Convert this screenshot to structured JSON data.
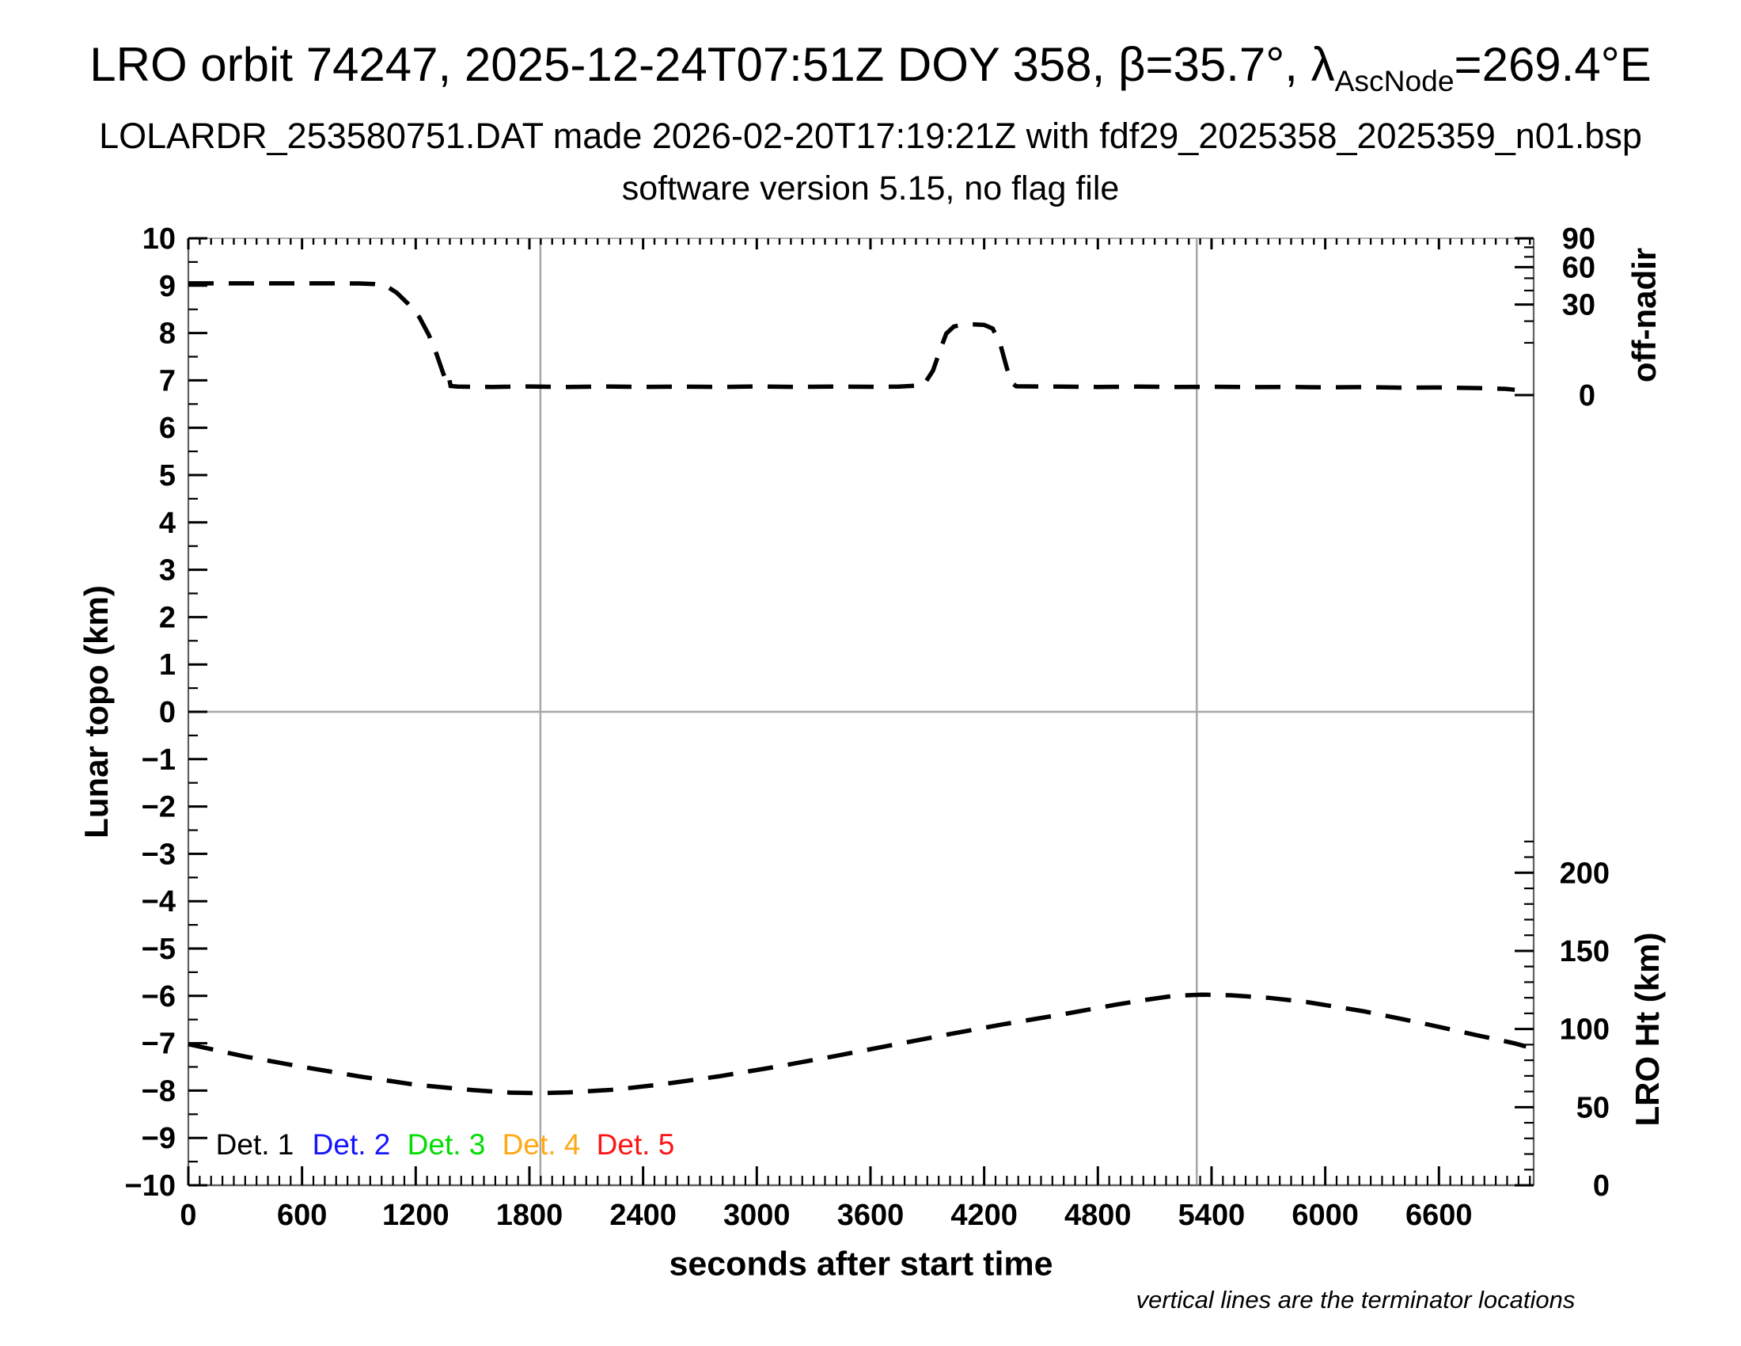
{
  "header": {
    "title_prefix": "LRO orbit 74247, 2025-12-24T07:51Z DOY 358, β=35.7°, λ",
    "title_lambda_sub": "AscNode",
    "title_suffix": "=269.4°E",
    "subtitle_file": "LOLARDR_253580751.DAT made 2026-02-20T17:19:21Z with fdf29_2025358_2025359_n01.bsp",
    "subtitle_version": "software version 5.15, no flag file"
  },
  "chart_data": {
    "type": "line",
    "title": "LRO orbit 74247, 2025-12-24T07:51Z DOY 358, β=35.7°, λAscNode=269.4°E",
    "x_axis": {
      "label": "seconds after start time",
      "range": [
        0,
        7100
      ],
      "major_ticks": [
        0,
        600,
        1200,
        1800,
        2400,
        3000,
        3600,
        4200,
        4800,
        5400,
        6000,
        6600
      ],
      "minor_step": 60
    },
    "left_y_axis": {
      "label": "Lunar topo (km)",
      "range": [
        -10,
        10
      ],
      "major_step": 1,
      "minor_step": 0.5
    },
    "right_top_axis": {
      "label": "off-nadir",
      "units": "degrees",
      "major_ticks": [
        90,
        60,
        30,
        0
      ],
      "minor_ticks": [
        80,
        70,
        50,
        40,
        20,
        10
      ],
      "map_a": 6.69,
      "map_b": 3.31,
      "mapping": "left-axis position = map_a + map_b*sqrt(deg/90)"
    },
    "right_bottom_axis": {
      "label": "LRO Ht (km)",
      "major_ticks": [
        200,
        150,
        100,
        50,
        0
      ],
      "minor_step": 10,
      "minor_max": 220,
      "km_per_topo_unit": 30.3,
      "mapping": "left-axis position = -10 + km/km_per_topo_unit"
    },
    "grid": {
      "zero_line_topo": 0,
      "terminator_lines_sec": [
        1858,
        5322
      ]
    },
    "note": "vertical lines are the terminator locations",
    "legend": [
      {
        "label": "Det. 1",
        "color": "#000000"
      },
      {
        "label": "Det. 2",
        "color": "#1414ff"
      },
      {
        "label": "Det. 3",
        "color": "#00dd00"
      },
      {
        "label": "Det. 4",
        "color": "#ffa914"
      },
      {
        "label": "Det. 5",
        "color": "#ff1414"
      }
    ],
    "series": [
      {
        "name": "off-nadir angle",
        "axis": "right_top",
        "units": "deg",
        "style": "dashed",
        "color": "#000000",
        "points": [
          [
            0,
            45.7
          ],
          [
            150,
            45.7
          ],
          [
            300,
            45.7
          ],
          [
            450,
            45.7
          ],
          [
            600,
            45.7
          ],
          [
            750,
            45.7
          ],
          [
            900,
            45.6
          ],
          [
            980,
            45.2
          ],
          [
            1040,
            44.0
          ],
          [
            1100,
            38.3
          ],
          [
            1160,
            30.5
          ],
          [
            1220,
            22.1
          ],
          [
            1270,
            13.1
          ],
          [
            1310,
            6.1
          ],
          [
            1345,
            1.74
          ],
          [
            1365,
            0.55
          ],
          [
            1376,
            1.07
          ],
          [
            1384,
            0.3
          ],
          [
            1420,
            0.26
          ],
          [
            1600,
            0.24
          ],
          [
            1800,
            0.27
          ],
          [
            2000,
            0.24
          ],
          [
            2200,
            0.27
          ],
          [
            2400,
            0.24
          ],
          [
            2600,
            0.26
          ],
          [
            2800,
            0.24
          ],
          [
            3000,
            0.27
          ],
          [
            3200,
            0.24
          ],
          [
            3400,
            0.26
          ],
          [
            3600,
            0.25
          ],
          [
            3750,
            0.26
          ],
          [
            3880,
            0.35
          ],
          [
            3930,
            2.2
          ],
          [
            3965,
            7.0
          ],
          [
            4000,
            13.8
          ],
          [
            4040,
            17.2
          ],
          [
            4090,
            18.2
          ],
          [
            4150,
            18.3
          ],
          [
            4200,
            18.0
          ],
          [
            4245,
            16.2
          ],
          [
            4285,
            9.5
          ],
          [
            4320,
            2.6
          ],
          [
            4348,
            0.5
          ],
          [
            4370,
            0.28
          ],
          [
            4600,
            0.26
          ],
          [
            4800,
            0.24
          ],
          [
            5000,
            0.26
          ],
          [
            5200,
            0.24
          ],
          [
            5400,
            0.25
          ],
          [
            5600,
            0.23
          ],
          [
            5800,
            0.24
          ],
          [
            6000,
            0.22
          ],
          [
            6200,
            0.23
          ],
          [
            6400,
            0.2
          ],
          [
            6600,
            0.21
          ],
          [
            6800,
            0.18
          ],
          [
            6950,
            0.14
          ],
          [
            7000,
            0.1
          ]
        ]
      },
      {
        "name": "LRO height",
        "axis": "right_bottom",
        "units": "km",
        "style": "dashed",
        "color": "#000000",
        "points": [
          [
            0,
            90.3
          ],
          [
            300,
            82.4
          ],
          [
            600,
            75.8
          ],
          [
            900,
            69.7
          ],
          [
            1200,
            64.3
          ],
          [
            1500,
            60.9
          ],
          [
            1700,
            59.3
          ],
          [
            1850,
            59.0
          ],
          [
            2000,
            59.4
          ],
          [
            2250,
            61.2
          ],
          [
            2500,
            64.6
          ],
          [
            2800,
            69.7
          ],
          [
            3100,
            75.8
          ],
          [
            3400,
            82.4
          ],
          [
            3700,
            89.4
          ],
          [
            4000,
            96.3
          ],
          [
            4300,
            103.0
          ],
          [
            4600,
            109.1
          ],
          [
            4900,
            115.7
          ],
          [
            5050,
            118.6
          ],
          [
            5200,
            121.2
          ],
          [
            5350,
            122.0
          ],
          [
            5500,
            121.6
          ],
          [
            5700,
            120.0
          ],
          [
            5900,
            117.3
          ],
          [
            6200,
            111.4
          ],
          [
            6500,
            104.0
          ],
          [
            6800,
            96.0
          ],
          [
            7000,
            90.8
          ],
          [
            7060,
            88.8
          ]
        ]
      }
    ]
  }
}
